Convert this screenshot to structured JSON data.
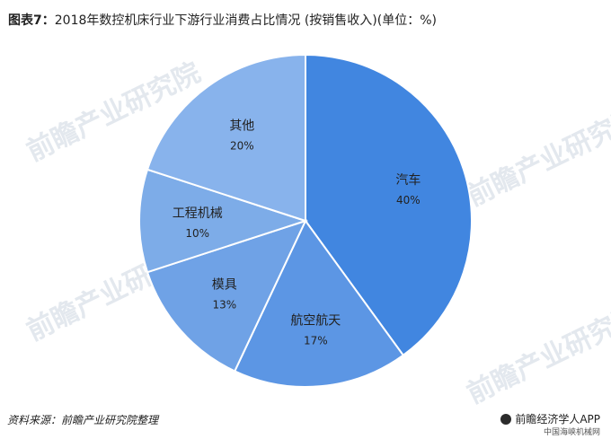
{
  "title": {
    "prefix": "图表7：",
    "text": "2018年数控机床行业下游行业消费占比情况 (按销售收入)(单位：%)"
  },
  "watermark": "前瞻产业研究院",
  "source": "资料来源：前瞻产业研究院整理",
  "brand": "前瞻经济学人APP",
  "subbrand": "中国海峡机械网",
  "chart_data": {
    "type": "pie",
    "categories": [
      "汽车",
      "航空航天",
      "模具",
      "工程机械",
      "其他"
    ],
    "values": [
      40,
      17,
      13,
      10,
      20
    ],
    "labels": [
      "40%",
      "17%",
      "13%",
      "10%",
      "20%"
    ],
    "colors": [
      "#4186e0",
      "#5c96e4",
      "#6fa2e6",
      "#7dace8",
      "#88b3ec"
    ],
    "start_angle": "12 o'clock",
    "direction": "clockwise"
  }
}
